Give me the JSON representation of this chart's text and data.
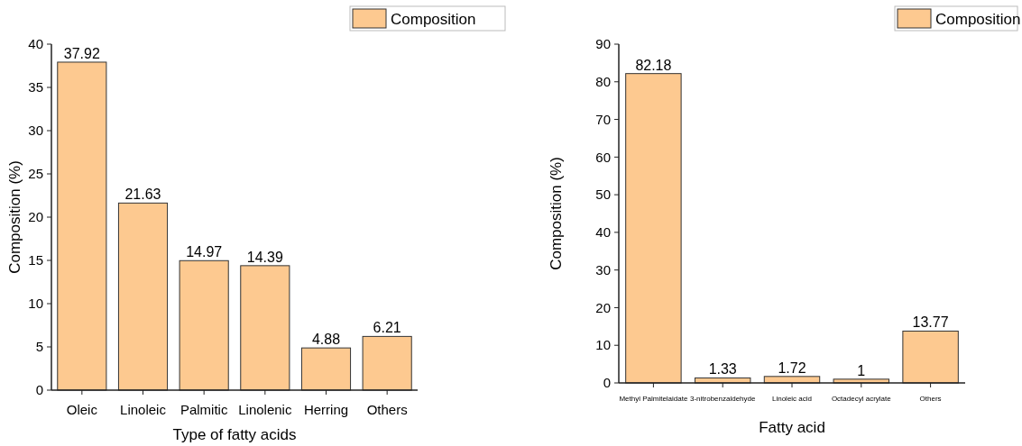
{
  "chart_data": [
    {
      "type": "bar",
      "xlabel": "Type of fatty acids",
      "ylabel": "Composition (%)",
      "categories": [
        "Oleic",
        "Linoleic",
        "Palmitic",
        "Linolenic",
        "Herring",
        "Others"
      ],
      "series": [
        {
          "name": "Composition",
          "color": "#fdc990",
          "values": [
            37.92,
            21.63,
            14.97,
            14.39,
            4.88,
            6.21
          ]
        }
      ],
      "ylim": [
        0,
        40
      ],
      "yticks": [
        0,
        5,
        10,
        15,
        20,
        25,
        30,
        35,
        40
      ],
      "data_labels": true,
      "legend": "top right",
      "grid": false
    },
    {
      "type": "bar",
      "xlabel": "Fatty acid",
      "ylabel": "Composition (%)",
      "categories": [
        "Methyl Palmitelaidate",
        "3-nitrobenzaldehyde",
        "Linoleic acid",
        "Octadecyl acrylate",
        "Others"
      ],
      "series": [
        {
          "name": "Composition",
          "color": "#fdc990",
          "values": [
            82.18,
            1.33,
            1.72,
            1,
            13.77
          ]
        }
      ],
      "ylim": [
        0,
        90
      ],
      "yticks": [
        0,
        10,
        20,
        30,
        40,
        50,
        60,
        70,
        80,
        90
      ],
      "data_labels": true,
      "legend": "top right",
      "grid": false
    }
  ]
}
